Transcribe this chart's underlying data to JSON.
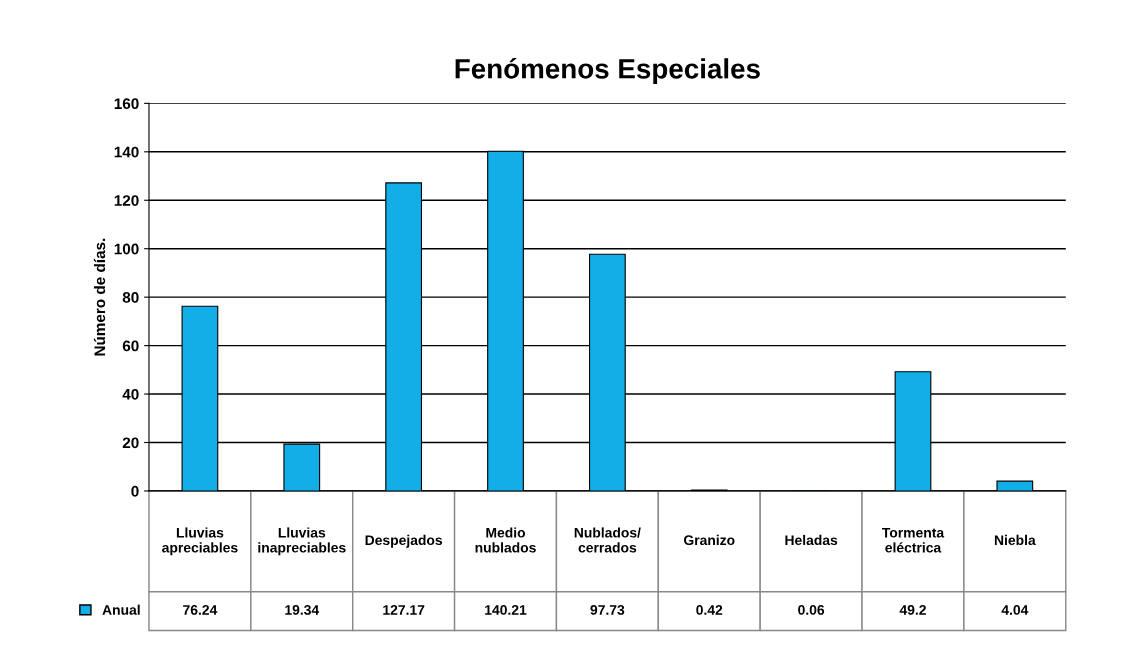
{
  "chart_data": {
    "type": "bar",
    "title": "Fenómenos Especiales",
    "ylabel": "Número de días.",
    "categories": [
      "Lluvias apreciables",
      "Lluvias inapreciables",
      "Despejados",
      "Medio nublados",
      "Nublados/cerrados",
      "Granizo",
      "Heladas",
      "Tormenta eléctrica",
      "Niebla"
    ],
    "series": [
      {
        "name": "Anual",
        "color": "#12aee8",
        "values": [
          76.24,
          19.34,
          127.17,
          140.21,
          97.73,
          0.42,
          0.06,
          49.2,
          4.04
        ]
      }
    ],
    "ylim": [
      0,
      160
    ],
    "yticks": [
      0,
      20,
      40,
      60,
      80,
      100,
      120,
      140,
      160
    ],
    "grid": "y",
    "legend": "bottom left",
    "data_labels": true
  }
}
